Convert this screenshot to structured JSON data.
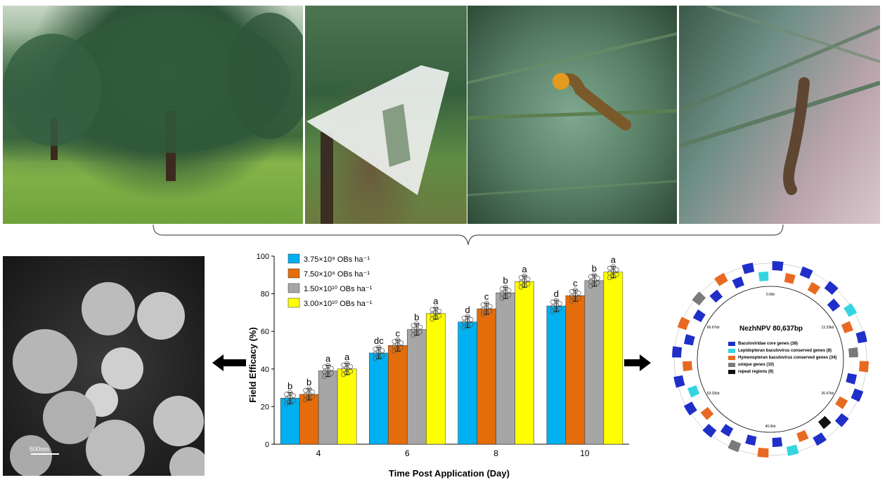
{
  "sem_panel": {
    "scale_label": "500nm"
  },
  "genome_map": {
    "title": "NezhNPV 80,637bp",
    "positions": [
      "0.0kb",
      "13.33kb",
      "26.67kb",
      "40.0kb",
      "53.33kb",
      "66.67kb"
    ],
    "legend": [
      {
        "label": "Baculoviridae core genes (38)",
        "color": "#1f2fc8"
      },
      {
        "label": "Lepidopteran baculovirus conserved genes (8)",
        "color": "#33d6e0"
      },
      {
        "label": "Hymenopteran baculovirus conserved genes (34)",
        "color": "#e86a22"
      },
      {
        "label": "unique genes (10)",
        "color": "#7a7a7a"
      },
      {
        "label": "repeat regions (9)",
        "color": "#111111"
      }
    ]
  },
  "chart_data": {
    "type": "bar",
    "categories": [
      "4",
      "6",
      "8",
      "10"
    ],
    "series": [
      {
        "name": "3.75×10⁹ OBs ha⁻¹",
        "color": "#00b0f0",
        "values": [
          24.5,
          48.5,
          65.0,
          73.5
        ],
        "errors": [
          3,
          3,
          3,
          3
        ],
        "letters": [
          "b",
          "dc",
          "d",
          "d"
        ]
      },
      {
        "name": "7.50×10⁹ OBs ha⁻¹",
        "color": "#e46c0a",
        "values": [
          26.5,
          52.5,
          72.0,
          79.0
        ],
        "errors": [
          3,
          3,
          3,
          3
        ],
        "letters": [
          "b",
          "c",
          "c",
          "c"
        ]
      },
      {
        "name": "1.50×10¹⁰ OBs ha⁻¹",
        "color": "#a6a6a6",
        "values": [
          39.0,
          61.0,
          80.5,
          87.0
        ],
        "errors": [
          3,
          3,
          3,
          3
        ],
        "letters": [
          "a",
          "b",
          "b",
          "b"
        ]
      },
      {
        "name": "3.00×10¹⁰ OBs ha⁻¹",
        "color": "#ffff00",
        "values": [
          40.0,
          69.5,
          86.5,
          91.5
        ],
        "errors": [
          3,
          3,
          3,
          3
        ],
        "letters": [
          "a",
          "a",
          "a",
          "a"
        ]
      }
    ],
    "xlabel": "Time Post Application (Day)",
    "ylabel": "Field Efficacy (%)",
    "ylim": [
      0,
      100
    ],
    "yticks": [
      0,
      20,
      40,
      60,
      80,
      100
    ],
    "legend_position": "top-left",
    "grid": false
  }
}
